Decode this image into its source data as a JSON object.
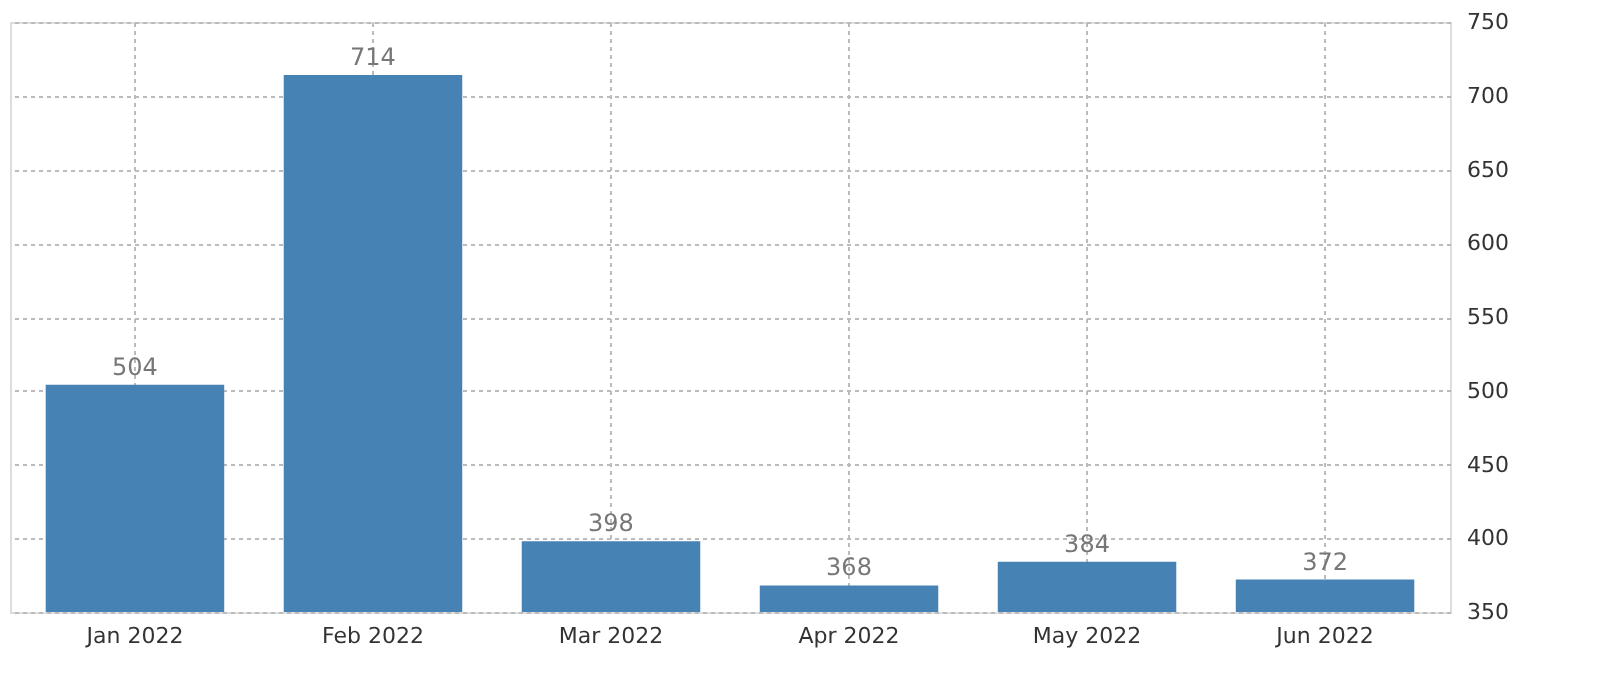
{
  "chart_data": {
    "type": "bar",
    "categories": [
      "Jan 2022",
      "Feb 2022",
      "Mar 2022",
      "Apr 2022",
      "May 2022",
      "Jun 2022"
    ],
    "values": [
      504,
      714,
      398,
      368,
      384,
      372
    ],
    "color": "#4682b4",
    "ylim": [
      350,
      750
    ],
    "yticks": [
      350,
      400,
      450,
      500,
      550,
      600,
      650,
      700,
      750
    ],
    "grid": true,
    "data_labels": true
  }
}
